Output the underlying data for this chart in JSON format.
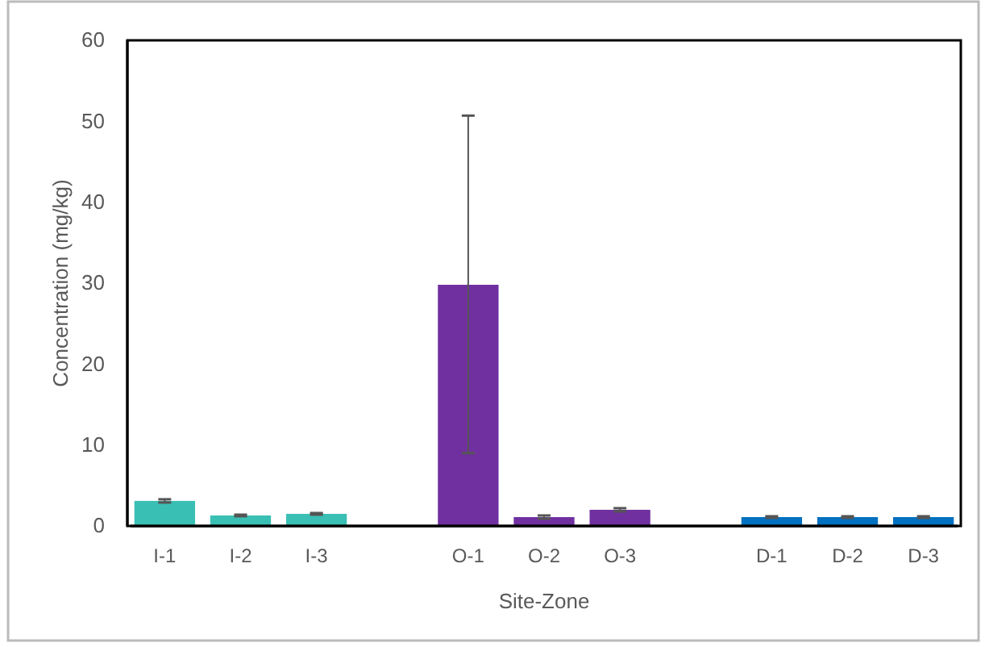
{
  "chart_data": {
    "type": "bar",
    "xlabel": "Site-Zone",
    "ylabel": "Concentration (mg/kg)",
    "categories": [
      "I-1",
      "I-2",
      "I-3",
      null,
      "O-1",
      "O-2",
      "O-3",
      null,
      "D-1",
      "D-2",
      "D-3"
    ],
    "values": [
      3.1,
      1.3,
      1.5,
      null,
      29.8,
      1.1,
      2.0,
      null,
      1.1,
      1.1,
      1.1
    ],
    "colors": [
      "#3abfb4",
      "#3abfb4",
      "#3abfb4",
      null,
      "#7030a0",
      "#7030a0",
      "#7030a0",
      null,
      "#0070c0",
      "#0070c0",
      "#0070c0"
    ],
    "errors": [
      0.2,
      0.1,
      0.1,
      null,
      [
        9.0,
        50.7
      ],
      0.2,
      0.2,
      null,
      0.1,
      0.1,
      0.1
    ],
    "ylim": [
      0,
      60
    ],
    "yticks": [
      0,
      10,
      20,
      30,
      40,
      50,
      60
    ],
    "grid": false
  }
}
